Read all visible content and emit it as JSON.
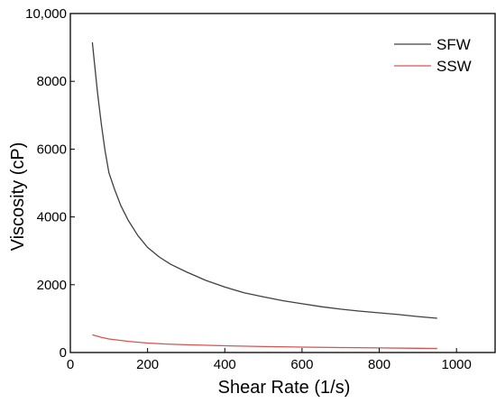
{
  "chart_data": {
    "type": "line",
    "xlabel": "Shear Rate (1/s)",
    "ylabel": "Viscosity (cP)",
    "xlim": [
      0,
      1100
    ],
    "ylim": [
      0,
      10000
    ],
    "x_ticks": [
      "0",
      "200",
      "400",
      "600",
      "800",
      "1000"
    ],
    "y_ticks": [
      "0",
      "2000",
      "4000",
      "6000",
      "8000",
      "10,000"
    ],
    "x_tick_values": [
      0,
      200,
      400,
      600,
      800,
      1000
    ],
    "y_tick_values": [
      0,
      2000,
      4000,
      6000,
      8000,
      10000
    ],
    "grid": false,
    "legend_position": "top-right",
    "series": [
      {
        "name": "SFW",
        "color": "#404040",
        "x": [
          57,
          70,
          80,
          90,
          100,
          115,
          130,
          150,
          175,
          200,
          230,
          260,
          300,
          350,
          400,
          450,
          500,
          550,
          600,
          650,
          700,
          750,
          800,
          850,
          900,
          950
        ],
        "y": [
          9150,
          7700,
          6750,
          5950,
          5300,
          4800,
          4350,
          3900,
          3450,
          3100,
          2820,
          2600,
          2380,
          2130,
          1930,
          1760,
          1640,
          1530,
          1440,
          1350,
          1280,
          1220,
          1170,
          1120,
          1060,
          1010
        ]
      },
      {
        "name": "SSW",
        "color": "#d9534f",
        "x": [
          57,
          80,
          100,
          150,
          200,
          250,
          300,
          400,
          500,
          600,
          700,
          800,
          900,
          950
        ],
        "y": [
          520,
          450,
          400,
          330,
          280,
          250,
          230,
          200,
          175,
          160,
          145,
          135,
          125,
          120
        ]
      }
    ]
  }
}
